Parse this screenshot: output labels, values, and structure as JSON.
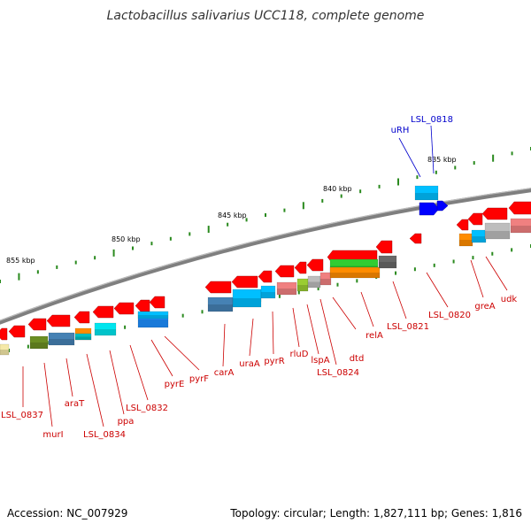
{
  "title": "Lactobacillus salivarius UCC118, complete genome",
  "accession": "Accession: NC_007929",
  "summary": "Topology: circular; Length: 1,827,111 bp; Genes: 1,816",
  "colors": {
    "backbone": "#7f7f7f",
    "gene_forward": "#ff0000",
    "highlight_gene": "#0000ff",
    "label_red": "#cc0000",
    "label_blue": "#0000cc",
    "tick": "#2a8a1e"
  },
  "ruler_labels": [
    "855 kbp",
    "850 kbp",
    "845 kbp",
    "840 kbp",
    "835 kbp"
  ],
  "gene_labels": [
    {
      "name": "LSL_0837",
      "color": "red"
    },
    {
      "name": "murI",
      "color": "red"
    },
    {
      "name": "araT",
      "color": "red"
    },
    {
      "name": "LSL_0834",
      "color": "red"
    },
    {
      "name": "ppa",
      "color": "red"
    },
    {
      "name": "LSL_0832",
      "color": "red"
    },
    {
      "name": "pyrE",
      "color": "red"
    },
    {
      "name": "pyrF",
      "color": "red"
    },
    {
      "name": "carA",
      "color": "red"
    },
    {
      "name": "uraA",
      "color": "red"
    },
    {
      "name": "pyrR",
      "color": "red"
    },
    {
      "name": "rluD",
      "color": "red"
    },
    {
      "name": "lspA",
      "color": "red"
    },
    {
      "name": "LSL_0824",
      "color": "red"
    },
    {
      "name": "dtd",
      "color": "red"
    },
    {
      "name": "relA",
      "color": "red"
    },
    {
      "name": "LSL_0821",
      "color": "red"
    },
    {
      "name": "LSL_0820",
      "color": "red"
    },
    {
      "name": "greA",
      "color": "red"
    },
    {
      "name": "udk",
      "color": "red"
    },
    {
      "name": "uRH",
      "color": "blue"
    },
    {
      "name": "LSL_0818",
      "color": "blue"
    }
  ]
}
